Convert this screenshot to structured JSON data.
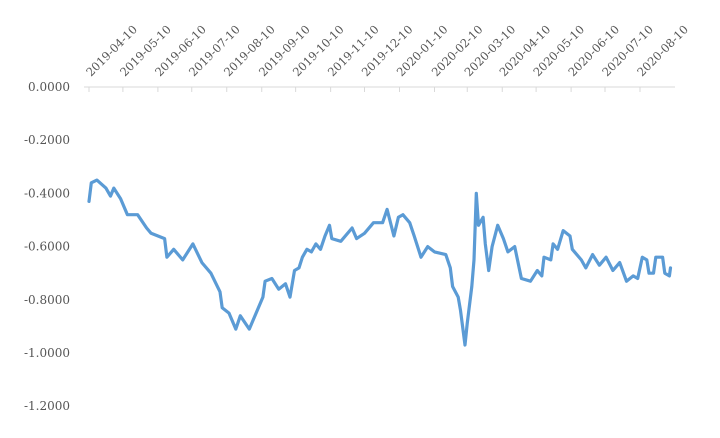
{
  "chart_data": {
    "type": "line",
    "title": "",
    "xlabel": "",
    "ylabel": "",
    "ylim": [
      -1.2,
      0.0
    ],
    "yticks": [
      "0.0000",
      "-0.2000",
      "-0.4000",
      "-0.6000",
      "-0.8000",
      "-1.0000",
      "-1.2000"
    ],
    "ytick_values": [
      0,
      -0.2,
      -0.4,
      -0.6,
      -0.8,
      -1.0,
      -1.2
    ],
    "xticks": [
      "2019-04-10",
      "2019-05-10",
      "2019-06-10",
      "2019-07-10",
      "2019-08-10",
      "2019-09-10",
      "2019-10-10",
      "2019-11-10",
      "2019-12-10",
      "2020-01-10",
      "2020-02-10",
      "2020-03-10",
      "2020-04-10",
      "2020-05-10",
      "2020-06-10",
      "2020-07-10",
      "2020-08-10"
    ],
    "xaxis_position": "top",
    "grid": false,
    "legend": "none",
    "color": "#5b9bd5",
    "series": [
      {
        "x": [
          "2019-04-10",
          "2019-04-12",
          "2019-04-17",
          "2019-04-25",
          "2019-04-29",
          "2019-05-02",
          "2019-05-08",
          "2019-05-14",
          "2019-05-23",
          "2019-05-31",
          "2019-06-04",
          "2019-06-16",
          "2019-06-18",
          "2019-06-24",
          "2019-07-02",
          "2019-07-11",
          "2019-07-19",
          "2019-07-27",
          "2019-08-04",
          "2019-08-06",
          "2019-08-12",
          "2019-08-18",
          "2019-08-22",
          "2019-08-30",
          "2019-09-05",
          "2019-09-11",
          "2019-09-13",
          "2019-09-19",
          "2019-09-25",
          "2019-10-01",
          "2019-10-05",
          "2019-10-09",
          "2019-10-13",
          "2019-10-16",
          "2019-10-20",
          "2019-10-24",
          "2019-10-28",
          "2019-11-01",
          "2019-11-05",
          "2019-11-09",
          "2019-11-11",
          "2019-11-19",
          "2019-11-29",
          "2019-12-03",
          "2019-12-10",
          "2019-12-18",
          "2019-12-26",
          "2019-12-30",
          "2020-01-05",
          "2020-01-09",
          "2020-01-13",
          "2020-01-19",
          "2020-01-23",
          "2020-01-29",
          "2020-02-04",
          "2020-02-10",
          "2020-02-20",
          "2020-02-24",
          "2020-02-26",
          "2020-03-02",
          "2020-03-04",
          "2020-03-08",
          "2020-03-10",
          "2020-03-14",
          "2020-03-16",
          "2020-03-18",
          "2020-03-20",
          "2020-03-24",
          "2020-03-26",
          "2020-03-29",
          "2020-04-01",
          "2020-04-06",
          "2020-04-11",
          "2020-04-15",
          "2020-04-21",
          "2020-04-27",
          "2020-05-05",
          "2020-05-11",
          "2020-05-15",
          "2020-05-17",
          "2020-05-23",
          "2020-05-25",
          "2020-05-29",
          "2020-06-03",
          "2020-06-09",
          "2020-06-11",
          "2020-06-19",
          "2020-06-23",
          "2020-06-29",
          "2020-07-05",
          "2020-07-11",
          "2020-07-17",
          "2020-07-23",
          "2020-07-29",
          "2020-08-04",
          "2020-08-08",
          "2020-08-12",
          "2020-08-16",
          "2020-08-18",
          "2020-08-22",
          "2020-08-24",
          "2020-08-30",
          "2020-09-01",
          "2020-09-05",
          "2020-09-06"
        ],
        "y": [
          -0.43,
          -0.36,
          -0.35,
          -0.38,
          -0.41,
          -0.38,
          -0.42,
          -0.48,
          -0.48,
          -0.53,
          -0.55,
          -0.57,
          -0.64,
          -0.61,
          -0.65,
          -0.59,
          -0.66,
          -0.7,
          -0.77,
          -0.83,
          -0.85,
          -0.91,
          -0.86,
          -0.91,
          -0.85,
          -0.79,
          -0.73,
          -0.72,
          -0.76,
          -0.74,
          -0.79,
          -0.69,
          -0.68,
          -0.64,
          -0.61,
          -0.62,
          -0.59,
          -0.61,
          -0.56,
          -0.52,
          -0.57,
          -0.58,
          -0.53,
          -0.57,
          -0.55,
          -0.51,
          -0.51,
          -0.46,
          -0.56,
          -0.49,
          -0.48,
          -0.51,
          -0.56,
          -0.64,
          -0.6,
          -0.62,
          -0.63,
          -0.68,
          -0.75,
          -0.79,
          -0.84,
          -0.97,
          -0.89,
          -0.75,
          -0.65,
          -0.4,
          -0.52,
          -0.49,
          -0.59,
          -0.69,
          -0.6,
          -0.52,
          -0.57,
          -0.62,
          -0.6,
          -0.72,
          -0.73,
          -0.69,
          -0.71,
          -0.64,
          -0.65,
          -0.59,
          -0.61,
          -0.54,
          -0.56,
          -0.61,
          -0.65,
          -0.68,
          -0.63,
          -0.67,
          -0.64,
          -0.69,
          -0.66,
          -0.73,
          -0.71,
          -0.72,
          -0.64,
          -0.65,
          -0.7,
          -0.7,
          -0.64,
          -0.64,
          -0.7,
          -0.71,
          -0.68
        ]
      }
    ]
  }
}
